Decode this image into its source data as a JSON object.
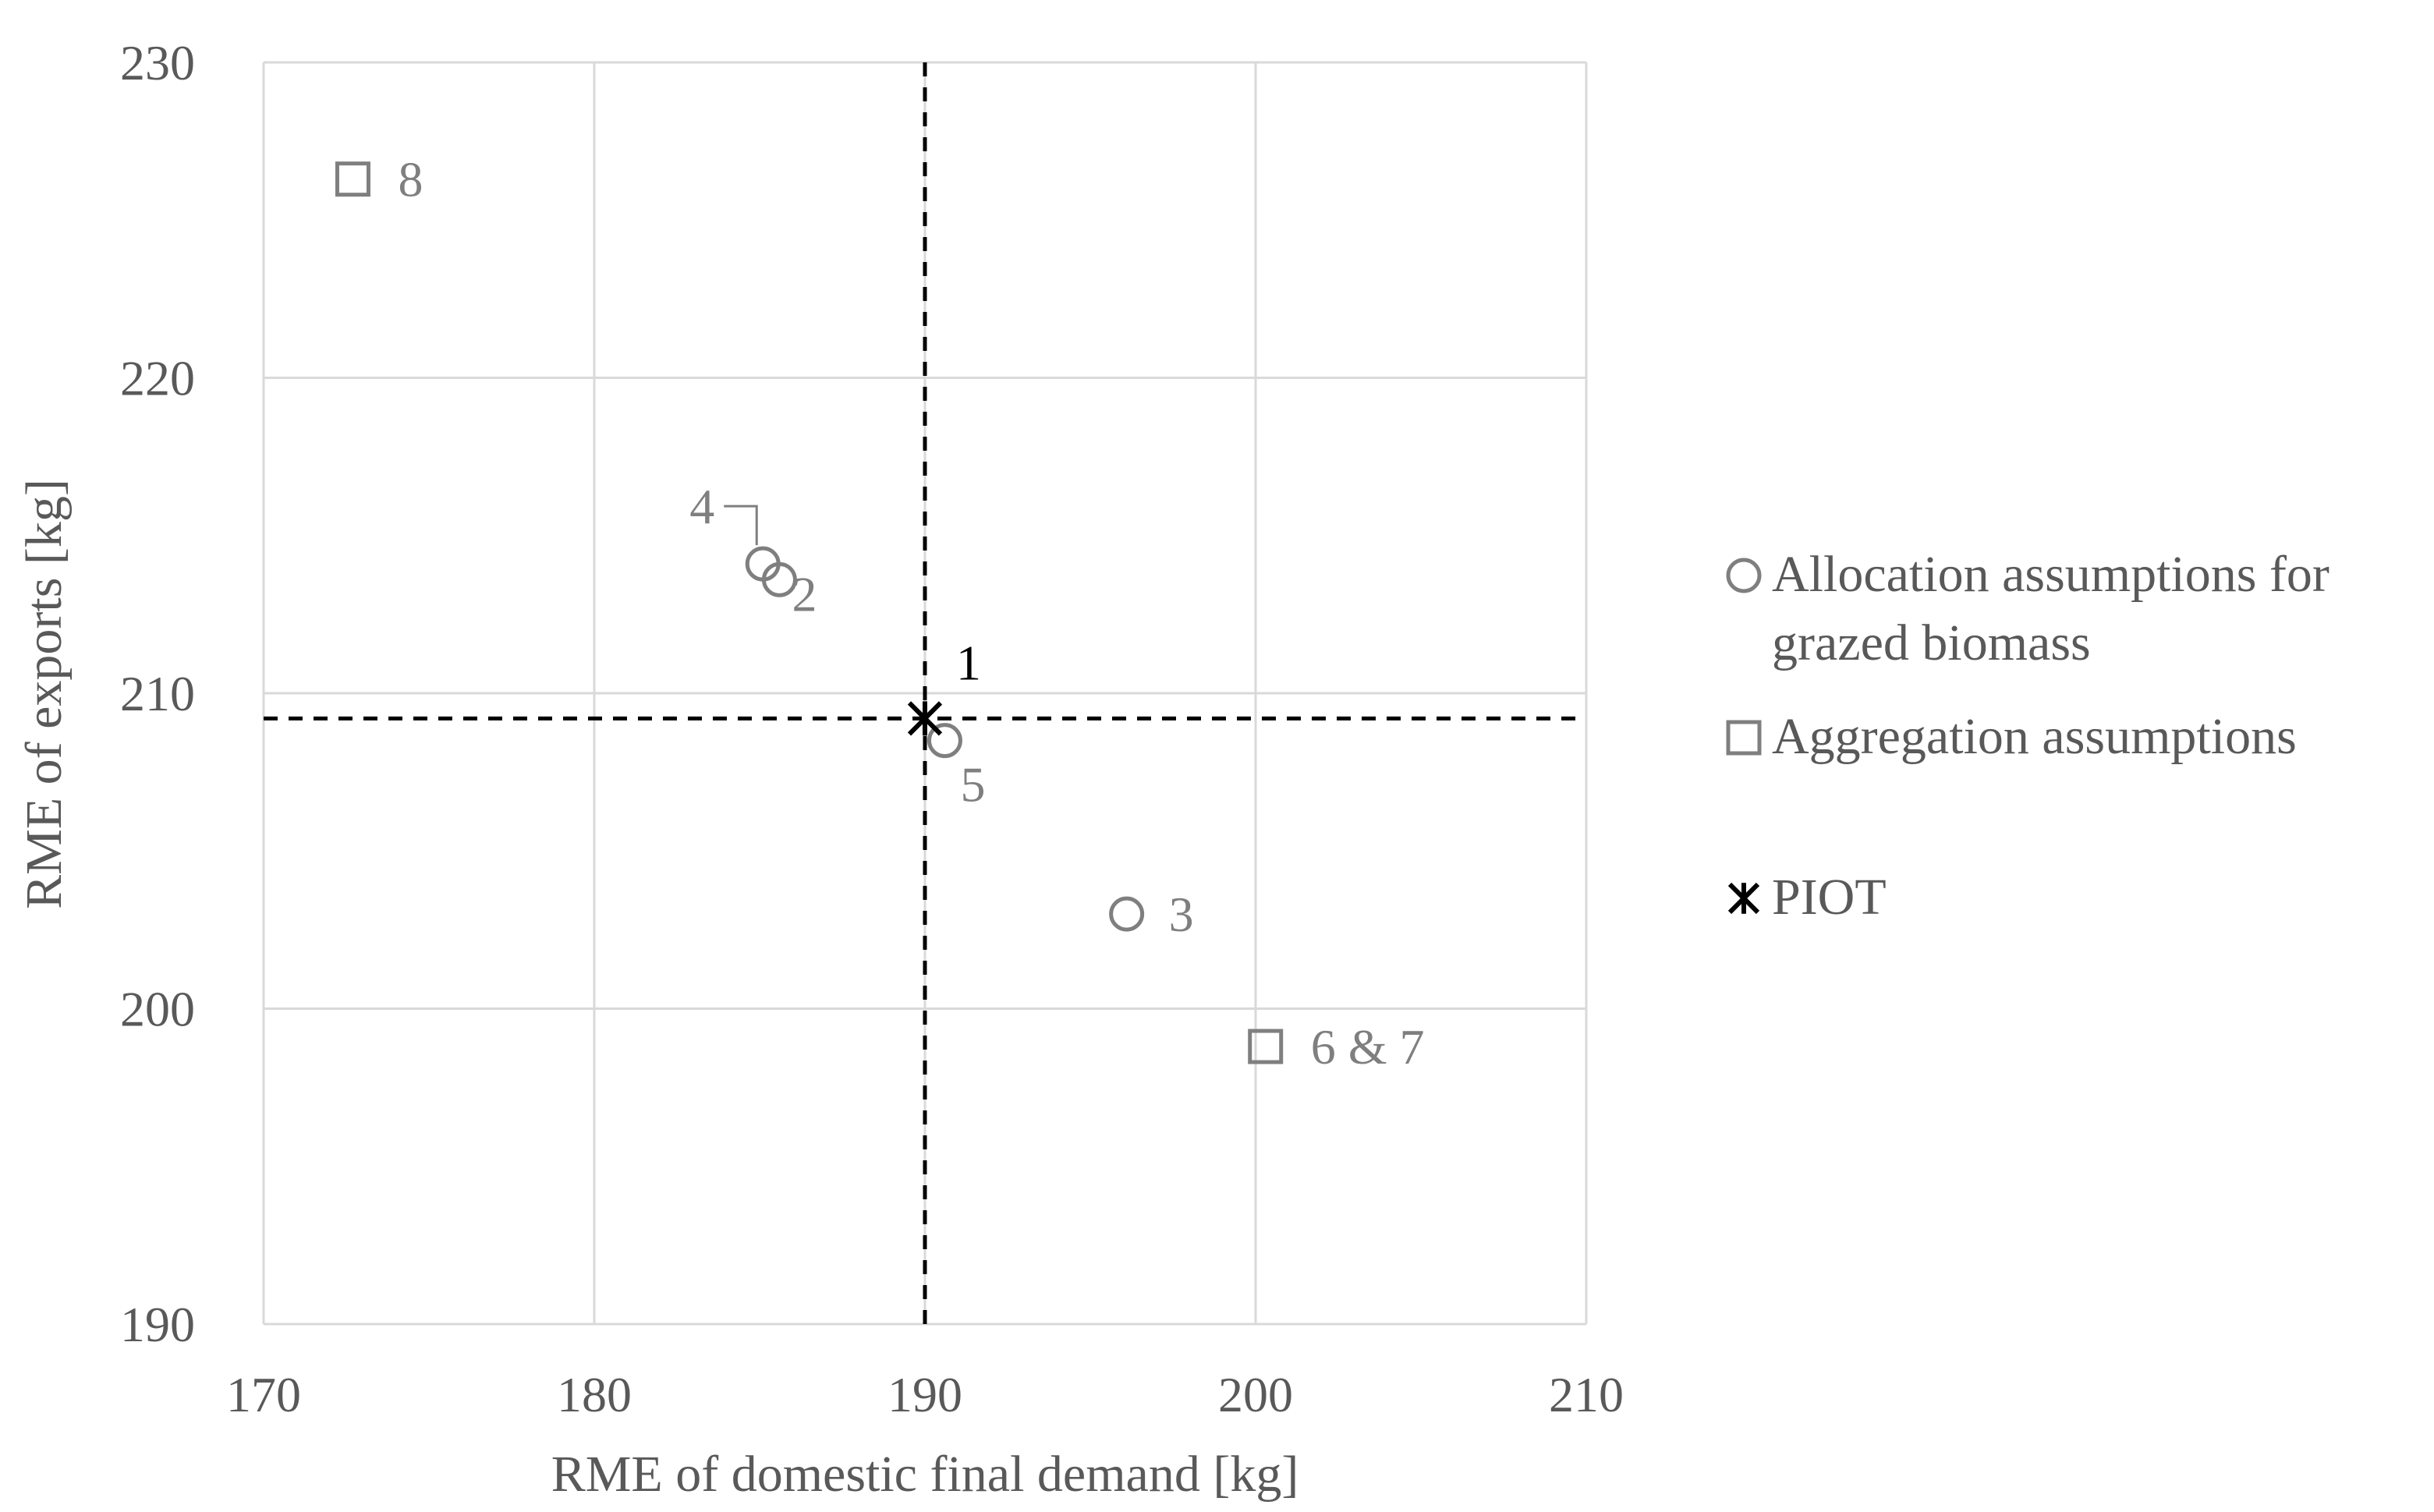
{
  "chart_data": {
    "type": "scatter",
    "title": "",
    "xlabel": "RME of domestic final demand [kg]",
    "ylabel": "RME of exports [kg]",
    "xlim": [
      170,
      210
    ],
    "ylim": [
      190,
      230
    ],
    "xticks": [
      "170",
      "180",
      "190",
      "200",
      "210"
    ],
    "yticks": [
      "190",
      "200",
      "210",
      "220",
      "230"
    ],
    "grid": true,
    "legend_position": "right",
    "reference_lines": {
      "x": 190,
      "y": 209.2,
      "style": "dashed",
      "color": "#000000"
    },
    "series": [
      {
        "name": "Allocation assumptions for grazed biomass",
        "legend_lines": [
          "Allocation assumptions for",
          "grazed biomass"
        ],
        "marker": "circle",
        "color": "#7f7f7f",
        "points": [
          {
            "x": 185.6,
            "y": 213.6,
            "label": "2"
          },
          {
            "x": 196.1,
            "y": 203.0,
            "label": "3"
          },
          {
            "x": 185.1,
            "y": 214.1,
            "label": "4"
          },
          {
            "x": 190.6,
            "y": 208.5,
            "label": "5"
          }
        ]
      },
      {
        "name": "Aggregation assumptions",
        "legend_lines": [
          "Aggregation assumptions"
        ],
        "marker": "square",
        "color": "#7f7f7f",
        "points": [
          {
            "x": 200.3,
            "y": 198.8,
            "label": "6 & 7"
          },
          {
            "x": 172.7,
            "y": 226.3,
            "label": "8"
          }
        ]
      },
      {
        "name": "PIOT",
        "legend_lines": [
          "PIOT"
        ],
        "marker": "asterisk",
        "color": "#000000",
        "points": [
          {
            "x": 190.0,
            "y": 209.2,
            "label": "1"
          }
        ]
      }
    ]
  }
}
